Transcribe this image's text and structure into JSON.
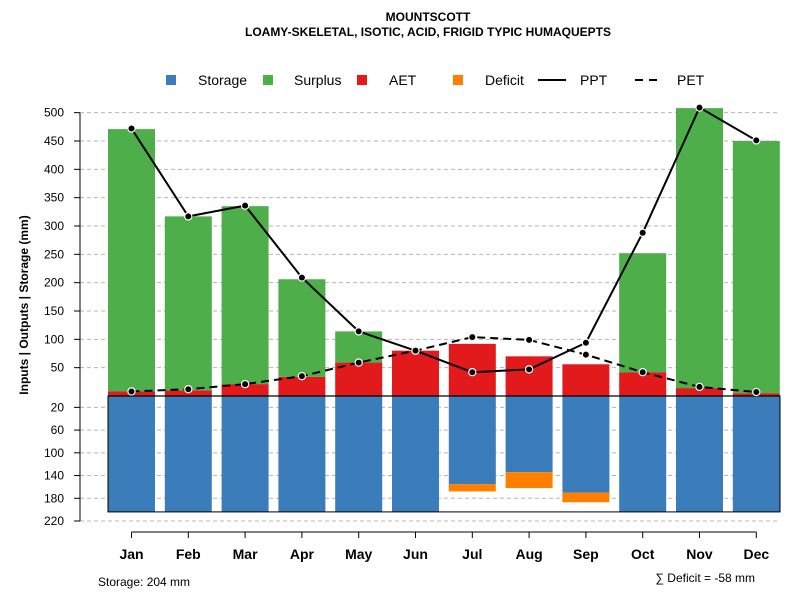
{
  "chart_data": {
    "type": "bar",
    "title": "MOUNTSCOTT",
    "subtitle": "LOAMY-SKELETAL, ISOTIC, ACID, FRIGID TYPIC HUMAQUEPTS",
    "ylabel": "Inputs | Outputs | Storage    (mm)",
    "categories": [
      "Jan",
      "Feb",
      "Mar",
      "Apr",
      "May",
      "Jun",
      "Jul",
      "Aug",
      "Sep",
      "Oct",
      "Nov",
      "Dec"
    ],
    "upper_axis": {
      "ylim": [
        0,
        510
      ],
      "ticks": [
        50,
        100,
        150,
        200,
        250,
        300,
        350,
        400,
        450,
        500
      ]
    },
    "lower_axis": {
      "ylim": [
        0,
        220
      ],
      "ticks": [
        20,
        60,
        100,
        140,
        180,
        220
      ]
    },
    "legend": [
      "Storage",
      "Surplus",
      "AET",
      "Deficit",
      "PPT",
      "PET"
    ],
    "colors": {
      "storage": "#3A7DBA",
      "surplus": "#4DAE4A",
      "aet": "#E31A1C",
      "deficit": "#FF8000"
    },
    "series": [
      {
        "name": "Surplus",
        "values": [
          463,
          307,
          314,
          172,
          55,
          0,
          0,
          0,
          0,
          210,
          494,
          445
        ]
      },
      {
        "name": "AET",
        "values": [
          8,
          10,
          21,
          34,
          59,
          80,
          92,
          70,
          56,
          42,
          14,
          5
        ]
      },
      {
        "name": "Storage",
        "values": [
          204,
          204,
          204,
          204,
          204,
          204,
          155,
          134,
          170,
          204,
          204,
          204
        ]
      },
      {
        "name": "Deficit",
        "values": [
          0,
          0,
          0,
          0,
          0,
          0,
          13,
          28,
          17,
          0,
          0,
          0
        ]
      },
      {
        "name": "PPT",
        "values": [
          472,
          317,
          336,
          209,
          114,
          80,
          42,
          47,
          94,
          288,
          509,
          451
        ]
      },
      {
        "name": "PET",
        "values": [
          8,
          12,
          21,
          35,
          59,
          80,
          104,
          99,
          73,
          42,
          16,
          7
        ]
      }
    ],
    "storage_label": "Storage: 204 mm",
    "deficit_label": "∑ Deficit = -58 mm"
  }
}
